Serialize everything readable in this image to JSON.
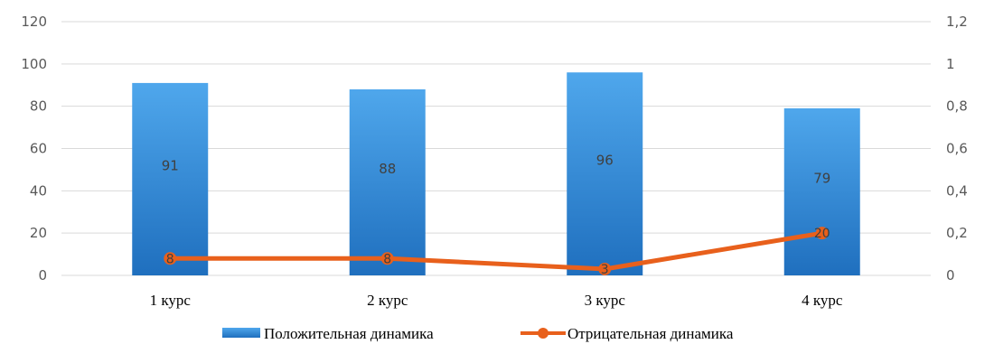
{
  "chart_data": {
    "type": "bar",
    "categories": [
      "1 курс",
      "2 курс",
      "3 курс",
      "4 курс"
    ],
    "series": [
      {
        "name": "Положительная динамика",
        "type": "bar",
        "axis": "left",
        "values": [
          91,
          88,
          96,
          79
        ],
        "data_labels": [
          "91",
          "88",
          "96",
          "79"
        ],
        "color": "#2E86D6"
      },
      {
        "name": "Отрицательная динамика",
        "type": "line",
        "axis": "right",
        "values": [
          0.08,
          0.08,
          0.03,
          0.2
        ],
        "data_labels": [
          "8",
          "8",
          "3",
          "20"
        ],
        "color": "#E8601C"
      }
    ],
    "y_left": {
      "ylim": [
        0,
        120
      ],
      "ticks": [
        0,
        20,
        40,
        60,
        80,
        100,
        120
      ],
      "tick_labels": [
        "0",
        "20",
        "40",
        "60",
        "80",
        "100",
        "120"
      ]
    },
    "y_right": {
      "ylim": [
        0,
        1.2
      ],
      "ticks": [
        0,
        0.2,
        0.4,
        0.6,
        0.8,
        1.0,
        1.2
      ],
      "tick_labels": [
        "0",
        "0,2",
        "0,4",
        "0,6",
        "0,8",
        "1",
        "1,2"
      ]
    },
    "grid": true,
    "legend_position": "bottom",
    "title": "",
    "xlabel": "",
    "ylabel": ""
  },
  "colors": {
    "bar_top": "#4FA7EC",
    "bar_bottom": "#1F6FBE",
    "line": "#E8601C",
    "grid": "#D9D9D9"
  }
}
